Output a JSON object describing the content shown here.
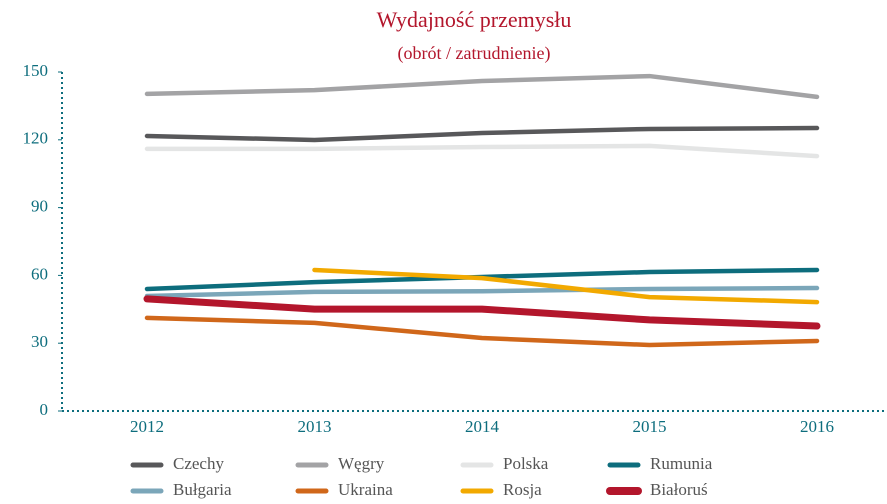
{
  "chart_data": {
    "type": "line",
    "title": "Wydajność przemysłu",
    "subtitle": "(obrót / zatrudnienie)",
    "categories": [
      "2012",
      "2013",
      "2014",
      "2015",
      "2016"
    ],
    "ylim": [
      0,
      150
    ],
    "yticks": [
      0,
      30,
      60,
      90,
      120,
      150
    ],
    "series": [
      {
        "name": "Czechy",
        "color": "#58585a",
        "values": [
          121.7,
          119.9,
          123,
          124.8,
          125.2
        ]
      },
      {
        "name": "Węgry",
        "color": "#a3a3a5",
        "values": [
          140.3,
          142,
          146,
          148.2,
          139
        ]
      },
      {
        "name": "Polska",
        "color": "#e4e5e5",
        "values": [
          116,
          116,
          116.8,
          117.3,
          112.8
        ]
      },
      {
        "name": "Rumunia",
        "color": "#0d6d7d",
        "values": [
          54,
          57,
          59.3,
          61.5,
          62.4
        ]
      },
      {
        "name": "Bułgaria",
        "color": "#7ba6b9",
        "values": [
          50.9,
          52.7,
          53,
          54,
          54.4
        ]
      },
      {
        "name": "Ukraina",
        "color": "#d0671a",
        "values": [
          41.2,
          39,
          32.3,
          29.2,
          31
        ]
      },
      {
        "name": "Rosja",
        "color": "#f2a900",
        "values": [
          null,
          62.4,
          58.8,
          50.4,
          48.2
        ]
      },
      {
        "name": "Białoruś",
        "color": "#b3162c",
        "values": [
          49.6,
          45.1,
          45.1,
          40.3,
          37.6
        ]
      }
    ]
  }
}
